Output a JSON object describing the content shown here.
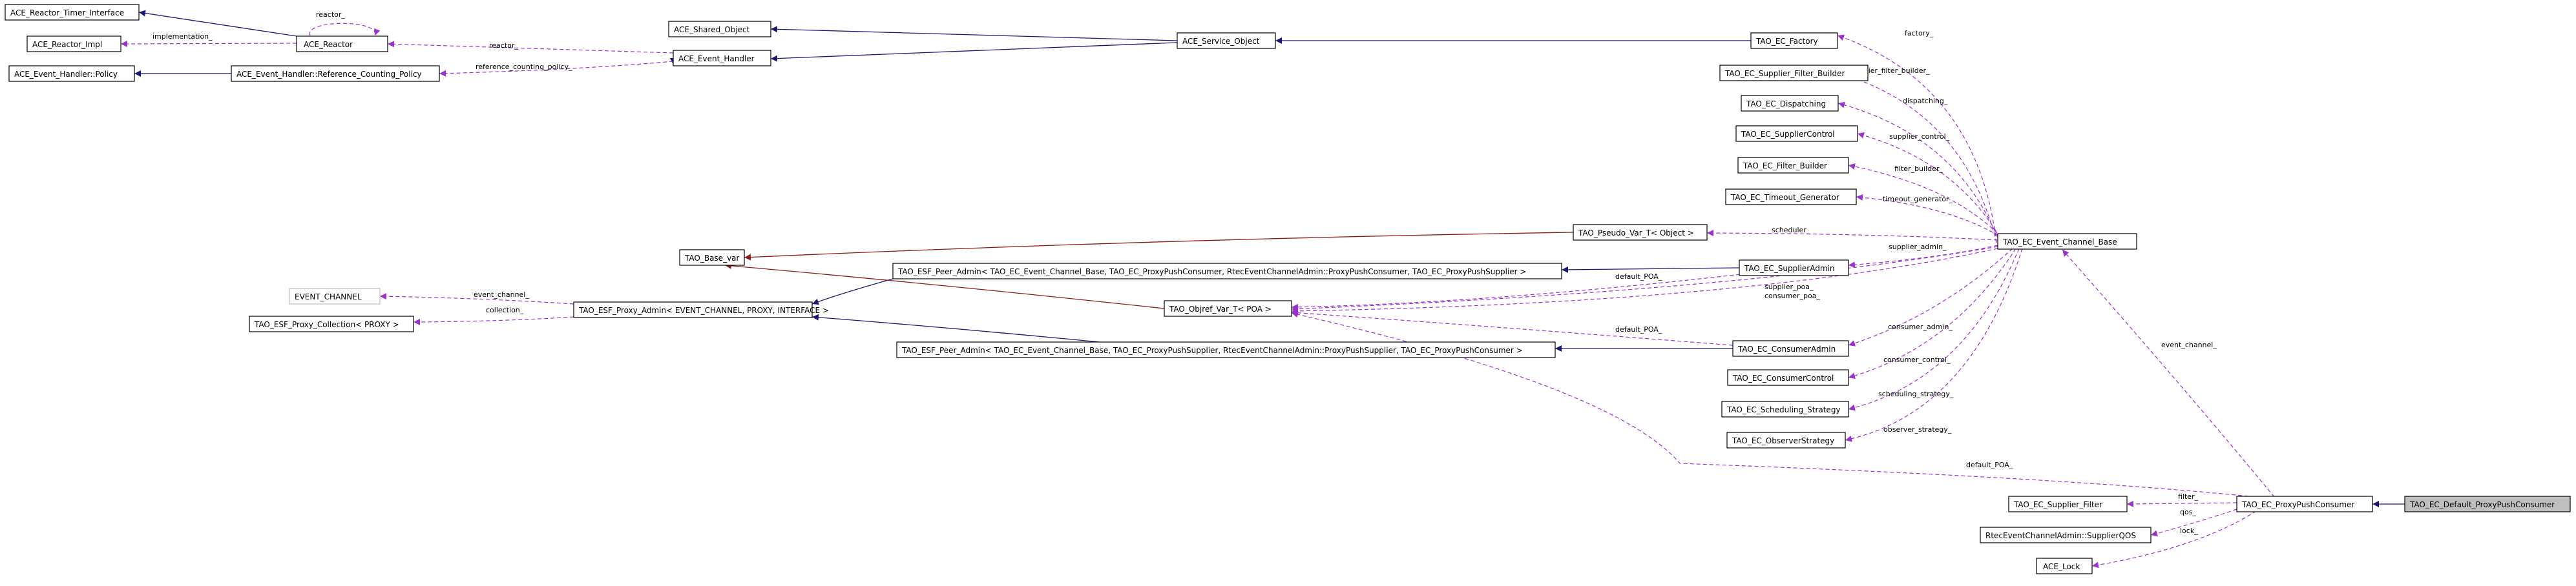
{
  "colors": {
    "inherit": "#191970",
    "use": "#9a32cd",
    "template": "#8b1a1a",
    "focus_fill": "#bfbfbf"
  },
  "nodes": {
    "reactor_timer": "ACE_Reactor_Timer_Interface",
    "reactor_impl": "ACE_Reactor_Impl",
    "reactor": "ACE_Reactor",
    "eh_policy": "ACE_Event_Handler::Policy",
    "eh_rcp": "ACE_Event_Handler::Reference_Counting_Policy",
    "shared_object": "ACE_Shared_Object",
    "event_handler": "ACE_Event_Handler",
    "service_object": "ACE_Service_Object",
    "ec_factory": "TAO_EC_Factory",
    "supplier_filter_builder": "TAO_EC_Supplier_Filter_Builder",
    "dispatching": "TAO_EC_Dispatching",
    "supplier_control": "TAO_EC_SupplierControl",
    "filter_builder": "TAO_EC_Filter_Builder",
    "timeout_generator": "TAO_EC_Timeout_Generator",
    "pseudo_var": "TAO_Pseudo_Var_T< Object >",
    "base_var": "TAO_Base_var",
    "event_channel_base": "TAO_EC_Event_Channel_Base",
    "peer_admin_consumer": "TAO_ESF_Peer_Admin< TAO_EC_Event_Channel_Base, TAO_EC_ProxyPushConsumer, RtecEventChannelAdmin::ProxyPushConsumer, TAO_EC_ProxyPushSupplier >",
    "supplier_admin": "TAO_EC_SupplierAdmin",
    "event_channel_tpl": "EVENT_CHANNEL",
    "proxy_admin": "TAO_ESF_Proxy_Admin< EVENT_CHANNEL, PROXY, INTERFACE >",
    "objref_var": "TAO_Objref_Var_T< POA >",
    "proxy_collection": "TAO_ESF_Proxy_Collection< PROXY >",
    "peer_admin_supplier": "TAO_ESF_Peer_Admin< TAO_EC_Event_Channel_Base, TAO_EC_ProxyPushSupplier, RtecEventChannelAdmin::ProxyPushSupplier, TAO_EC_ProxyPushConsumer >",
    "consumer_admin": "TAO_EC_ConsumerAdmin",
    "consumer_control": "TAO_EC_ConsumerControl",
    "scheduling_strategy": "TAO_EC_Scheduling_Strategy",
    "observer_strategy": "TAO_EC_ObserverStrategy",
    "supplier_filter": "TAO_EC_Supplier_Filter",
    "proxy_push_consumer": "TAO_EC_ProxyPushConsumer",
    "default_ppc": "TAO_EC_Default_ProxyPushConsumer",
    "supplier_qos": "RtecEventChannelAdmin::SupplierQOS",
    "ace_lock": "ACE_Lock"
  },
  "edge_labels": {
    "reactor_self": "reactor_",
    "implementation": "implementation_",
    "reactor_eh": "reactor_",
    "reference_counting_policy": "reference_counting_policy_",
    "factory": "factory_",
    "supplier_filter_builder": "supplier_filter_builder_",
    "dispatching": "dispatching_",
    "supplier_control": "supplier_control_",
    "filter_builder": "filter_builder_",
    "timeout_generator": "timeout_generator_",
    "scheduler": "scheduler_",
    "supplier_admin": "supplier_admin_",
    "default_poa_1": "default_POA_",
    "event_channel_1": "event_channel_",
    "collection": "collection_",
    "supplier_poa": "supplier_poa_",
    "consumer_poa": "consumer_poa_",
    "default_poa_2": "default_POA_",
    "consumer_admin": "consumer_admin_",
    "consumer_control": "consumer_control_",
    "scheduling_strategy": "scheduling_strategy_",
    "observer_strategy": "observer_strategy_",
    "event_channel_2": "event_channel_",
    "default_poa_3": "default_POA_",
    "filter": "filter_",
    "qos": "qos_",
    "lock": "lock_"
  }
}
